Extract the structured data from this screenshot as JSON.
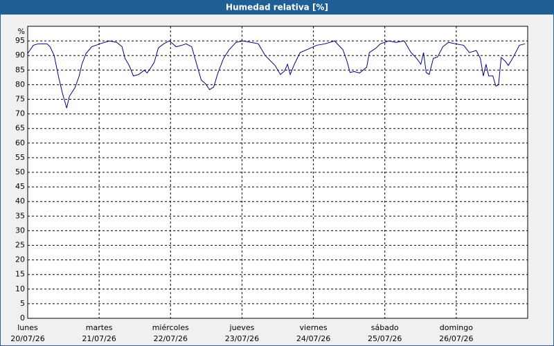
{
  "chart_data": {
    "type": "line",
    "title": "Humedad relativa [%]",
    "ylabel": "%",
    "xlim": [
      0,
      168
    ],
    "ylim": [
      0,
      100
    ],
    "yticks": [
      0,
      5,
      10,
      15,
      20,
      25,
      30,
      35,
      40,
      45,
      50,
      55,
      60,
      65,
      70,
      75,
      80,
      85,
      90,
      95
    ],
    "xticks": [
      {
        "value": 0,
        "label": [
          "lunes",
          "20/07/26"
        ]
      },
      {
        "value": 24,
        "label": [
          "martes",
          "21/07/26"
        ]
      },
      {
        "value": 48,
        "label": [
          "miércoles",
          "22/07/26"
        ]
      },
      {
        "value": 72,
        "label": [
          "jueves",
          "23/07/26"
        ]
      },
      {
        "value": 96,
        "label": [
          "viernes",
          "24/07/26"
        ]
      },
      {
        "value": 120,
        "label": [
          "sábado",
          "25/07/26"
        ]
      },
      {
        "value": 144,
        "label": [
          "domingo",
          "26/07/26"
        ]
      }
    ],
    "grid": true,
    "series": [
      {
        "color": "#000080",
        "x": [
          0,
          1.9,
          3.5,
          6.5,
          7.5,
          8.9,
          10.3,
          11.7,
          13.1,
          14,
          15.9,
          17.3,
          18.2,
          19.6,
          21.5,
          24.3,
          27.5,
          29.9,
          31.7,
          32.7,
          34.1,
          35.5,
          37.3,
          39.2,
          40.1,
          41.1,
          42.5,
          43.9,
          45.7,
          47.6,
          49.9,
          51.8,
          53.2,
          55.1,
          56.5,
          58.3,
          59.7,
          61.1,
          62.5,
          63.9,
          65.8,
          67.7,
          70,
          72.3,
          75.1,
          77.5,
          79.8,
          83.1,
          84.9,
          86.3,
          87.3,
          88.2,
          89.6,
          91.5,
          94.7,
          97.1,
          99.9,
          103.1,
          105.9,
          107.3,
          108.3,
          109.7,
          111.5,
          112.9,
          113.9,
          114.8,
          117.1,
          118.5,
          121.3,
          123.7,
          126.5,
          128.8,
          130.7,
          132.1,
          133,
          133.9,
          134.9,
          136.3,
          137.7,
          139.5,
          141.4,
          143.7,
          146.5,
          148.4,
          150.7,
          152.1,
          153.1,
          154,
          154.9,
          156.3,
          157.3,
          158.2,
          159.1,
          160.5,
          161.5,
          163.3,
          165.2,
          167.1
        ],
        "values": [
          90.7,
          93.5,
          94,
          94,
          93,
          90,
          83,
          77,
          72,
          76,
          79,
          83,
          87,
          90.7,
          93,
          94,
          95,
          94.5,
          93,
          89,
          86.6,
          83,
          83.5,
          85,
          84,
          85.4,
          87.6,
          92.6,
          94,
          95,
          93,
          93.5,
          94,
          93,
          88,
          81.6,
          80.4,
          78.3,
          79.2,
          84,
          89,
          92,
          94.5,
          95,
          94.5,
          94,
          90,
          86.6,
          83.5,
          84.7,
          87,
          83.5,
          87,
          91,
          92.4,
          93.5,
          94,
          95,
          92,
          88,
          84.2,
          84.5,
          84,
          85.2,
          86,
          91,
          92.6,
          94,
          95,
          94.5,
          95,
          91,
          89,
          87,
          91,
          84.2,
          83.5,
          89,
          89.5,
          93,
          94.5,
          94,
          93.5,
          91,
          91.7,
          89,
          83,
          87,
          83,
          83,
          79.5,
          80,
          89.3,
          88,
          86.6,
          89.7,
          93.5,
          94
        ]
      }
    ]
  }
}
